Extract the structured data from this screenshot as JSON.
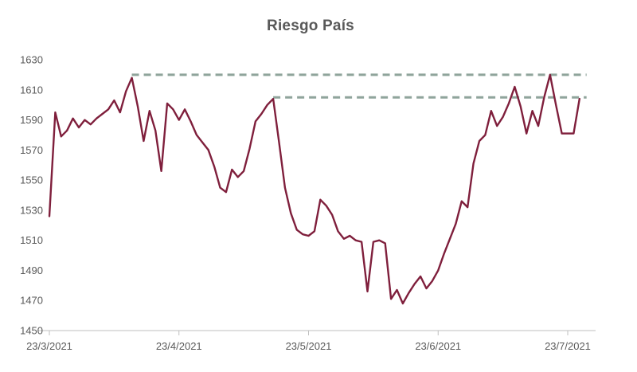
{
  "chart_data": {
    "type": "line",
    "title": "Riesgo País",
    "x_tick_labels": [
      "23/3/2021",
      "23/4/2021",
      "23/5/2021",
      "23/6/2021",
      "23/7/2021"
    ],
    "x_tick_indices": [
      0,
      22,
      44,
      66,
      88
    ],
    "y_ticks": [
      1450,
      1470,
      1490,
      1510,
      1530,
      1550,
      1570,
      1590,
      1610,
      1630
    ],
    "ylim": [
      1450,
      1630
    ],
    "grid": false,
    "legend": false,
    "axis_color": "#bfbfbf",
    "text_color": "#595959",
    "series": [
      {
        "name": "Riesgo País",
        "color": "#7f1f3c",
        "values": [
          1526,
          1595,
          1579,
          1583,
          1591,
          1585,
          1590,
          1587,
          1591,
          1594,
          1597,
          1603,
          1595,
          1609,
          1618,
          1599,
          1576,
          1596,
          1583,
          1556,
          1601,
          1597,
          1590,
          1597,
          1589,
          1580,
          1575,
          1570,
          1559,
          1545,
          1542,
          1557,
          1552,
          1556,
          1571,
          1589,
          1594,
          1600,
          1604,
          1575,
          1545,
          1528,
          1517,
          1514,
          1513,
          1516,
          1537,
          1533,
          1527,
          1516,
          1511,
          1513,
          1510,
          1509,
          1476,
          1509,
          1510,
          1508,
          1471,
          1477,
          1468,
          1475,
          1481,
          1486,
          1478,
          1483,
          1490,
          1501,
          1511,
          1521,
          1536,
          1532,
          1561,
          1576,
          1580,
          1596,
          1586,
          1592,
          1601,
          1612,
          1599,
          1581,
          1596,
          1586,
          1605,
          1620,
          1600,
          1581,
          1581,
          1581,
          1604
        ]
      }
    ],
    "reference_lines": [
      {
        "name": "resistencia-superior",
        "value": 1620,
        "start_index": 14,
        "end_index": 91.2,
        "color": "#8fa49b",
        "style": "dashed"
      },
      {
        "name": "resistencia-inferior",
        "value": 1605,
        "start_index": 38,
        "end_index": 91.2,
        "color": "#8fa49b",
        "style": "dashed"
      }
    ]
  }
}
